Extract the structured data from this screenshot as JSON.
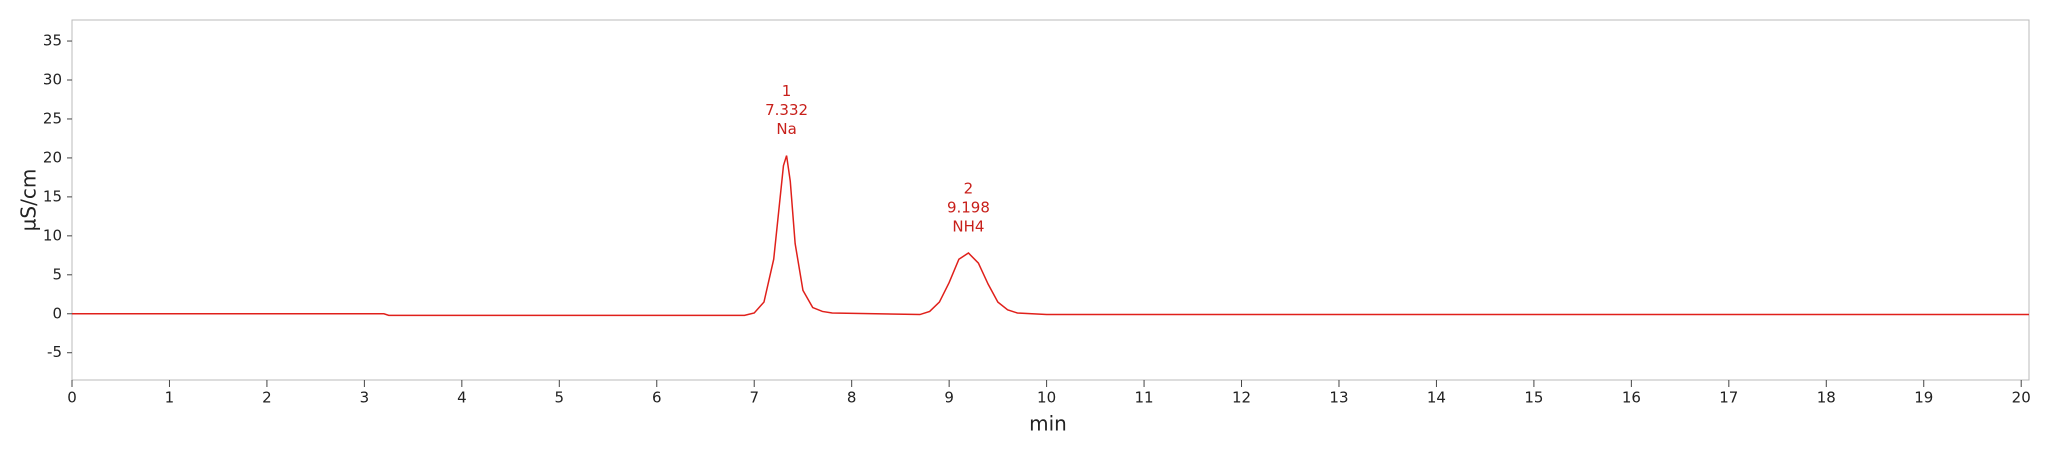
{
  "chart_data": {
    "type": "line",
    "ylabel": "µS/cm",
    "xlabel": "min",
    "xlim": [
      0,
      20.08
    ],
    "xticks": [
      0,
      1,
      2,
      3,
      4,
      5,
      6,
      7,
      8,
      9,
      10,
      11,
      12,
      13,
      14,
      15,
      16,
      17,
      18,
      19,
      20
    ],
    "ylim": [
      -8.5,
      37.7
    ],
    "yticks": [
      -5,
      0,
      5,
      10,
      15,
      20,
      25,
      30,
      35
    ],
    "series": [
      {
        "color": "#e0201b",
        "x": [
          0,
          3.2,
          3.25,
          6.9,
          7.0,
          7.1,
          7.2,
          7.25,
          7.3,
          7.332,
          7.37,
          7.42,
          7.5,
          7.6,
          7.7,
          7.8,
          8.7,
          8.8,
          8.9,
          9.0,
          9.1,
          9.198,
          9.3,
          9.4,
          9.5,
          9.6,
          9.7,
          10.0,
          20.08
        ],
        "values": [
          0,
          0,
          -0.2,
          -0.2,
          0.1,
          1.5,
          7,
          13,
          19,
          20.3,
          17,
          9,
          3,
          0.8,
          0.3,
          0.1,
          -0.1,
          0.3,
          1.5,
          4,
          7,
          7.8,
          6.5,
          3.8,
          1.5,
          0.5,
          0.1,
          -0.1,
          -0.1
        ]
      }
    ],
    "peaks": [
      {
        "number": "1",
        "time": 7.332,
        "name": "Na"
      },
      {
        "number": "2",
        "time": 9.198,
        "name": "NH4"
      }
    ]
  }
}
